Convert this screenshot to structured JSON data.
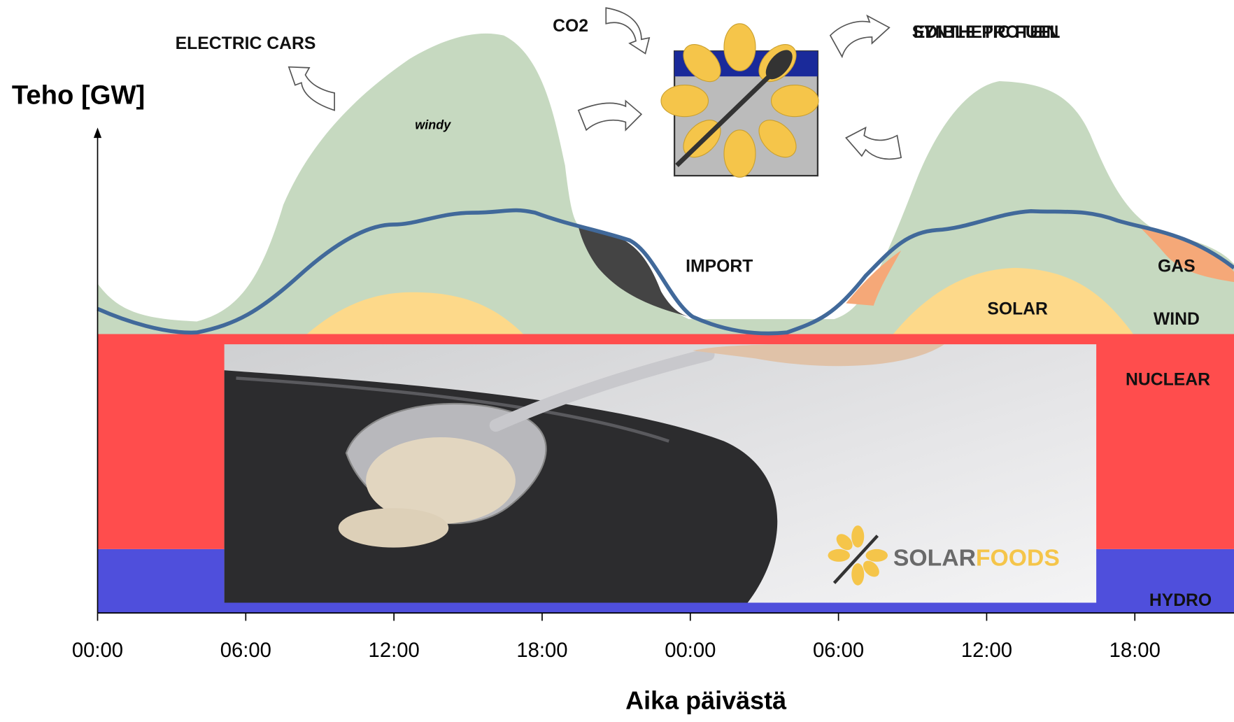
{
  "axis": {
    "y_label": "Teho [GW]",
    "x_label": "Aika päivästä",
    "x_ticks": [
      "00:00",
      "06:00",
      "12:00",
      "18:00",
      "00:00",
      "06:00",
      "12:00",
      "18:00"
    ]
  },
  "labels": {
    "electric_cars": "ELECTRIC CARS",
    "co2": "CO2",
    "synthetic_fuel": "SYNTHETIC FUEL",
    "edible_protein": "EDIBLE PROTEIN",
    "windy": "windy",
    "import": "IMPORT",
    "gas": "GAS",
    "solar": "SOLAR",
    "wind": "WIND",
    "nuclear": "NUCLEAR",
    "hydro": "HYDRO"
  },
  "logo": {
    "brand_1": "SOLAR",
    "brand_2": "FOODS"
  }
}
